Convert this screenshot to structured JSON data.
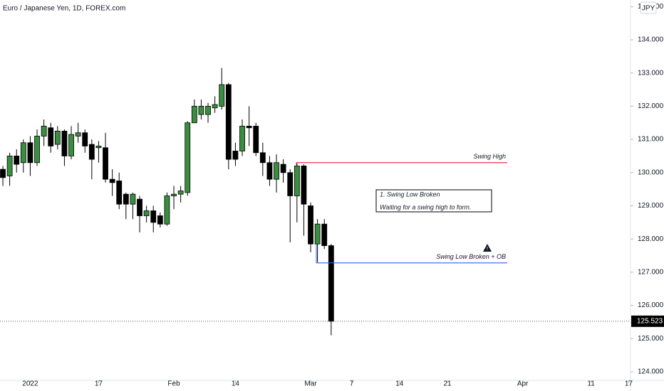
{
  "chart_data": {
    "type": "candlestick",
    "title": "Euro / Japanese Yen, 1D, FOREX.com",
    "currency": "JPY",
    "x": [
      0,
      1,
      2,
      3,
      4,
      5,
      6,
      7,
      8,
      9,
      10,
      11,
      12,
      13,
      14,
      15,
      16,
      17,
      18,
      19,
      20,
      21,
      22,
      23,
      24,
      25,
      26,
      27,
      28,
      29,
      30,
      31,
      32,
      33,
      34,
      35,
      36,
      37,
      38,
      39,
      40,
      41,
      42,
      43,
      44,
      45,
      46,
      47,
      48
    ],
    "open": [
      130.1,
      129.9,
      130.5,
      130.3,
      130.9,
      130.3,
      131.1,
      131.35,
      130.85,
      131.25,
      130.5,
      131.1,
      131.2,
      130.85,
      130.75,
      130.75,
      129.8,
      129.75,
      129.35,
      129.05,
      129.2,
      128.7,
      128.85,
      128.7,
      128.45,
      129.3,
      129.35,
      129.4,
      131.5,
      131.75,
      131.75,
      131.95,
      132.0,
      132.65,
      130.65,
      130.65,
      131.4,
      131.4,
      130.6,
      130.3,
      129.8,
      130.25,
      130.0,
      129.3,
      130.2,
      129.0,
      127.85,
      128.45,
      127.8
    ],
    "high": [
      130.2,
      130.6,
      130.7,
      131.0,
      131.1,
      131.3,
      131.6,
      131.5,
      131.4,
      131.3,
      131.4,
      131.5,
      131.3,
      131.0,
      130.95,
      131.2,
      130.1,
      130.0,
      129.4,
      129.4,
      129.3,
      129.0,
      129.0,
      128.8,
      129.4,
      129.6,
      129.6,
      131.55,
      132.2,
      132.2,
      132.1,
      132.3,
      133.15,
      132.7,
      130.9,
      131.6,
      132.0,
      131.5,
      130.9,
      130.5,
      130.55,
      130.4,
      130.1,
      130.3,
      130.25,
      129.1,
      128.6,
      128.6,
      127.85
    ],
    "low": [
      129.6,
      129.6,
      130.0,
      130.0,
      129.9,
      130.2,
      130.8,
      130.6,
      130.7,
      130.2,
      130.4,
      130.9,
      130.6,
      129.8,
      130.3,
      129.7,
      129.3,
      128.9,
      128.6,
      128.6,
      128.2,
      128.5,
      128.2,
      128.35,
      128.4,
      128.9,
      129.1,
      129.3,
      131.5,
      131.6,
      131.5,
      131.8,
      131.9,
      130.1,
      130.2,
      130.5,
      130.8,
      130.5,
      129.9,
      129.6,
      129.4,
      129.7,
      127.9,
      128.5,
      128.1,
      127.6,
      127.3,
      127.7,
      125.1
    ],
    "close": [
      129.85,
      130.5,
      130.25,
      130.9,
      130.3,
      131.1,
      131.4,
      130.8,
      131.25,
      130.5,
      131.15,
      131.2,
      130.8,
      130.4,
      130.8,
      129.8,
      129.7,
      129.05,
      129.05,
      129.35,
      128.7,
      128.85,
      128.5,
      128.45,
      129.3,
      129.35,
      129.45,
      131.5,
      132.0,
      132.0,
      132.0,
      132.05,
      132.65,
      130.4,
      130.4,
      131.4,
      131.35,
      130.6,
      130.3,
      129.8,
      130.3,
      130.0,
      129.3,
      130.2,
      129.05,
      127.85,
      128.45,
      127.8,
      125.523
    ],
    "up_color": "#3a8e3f",
    "down_color": "#000000",
    "last_price": 125.523,
    "ylim": [
      123.743,
      135.199
    ],
    "yticks": [
      {
        "value": 124,
        "label": "124.000"
      },
      {
        "value": 125,
        "label": "125.000"
      },
      {
        "value": 126,
        "label": "126.000"
      },
      {
        "value": 127,
        "label": "127.000"
      },
      {
        "value": 128,
        "label": "128.000"
      },
      {
        "value": 129,
        "label": "129.000"
      },
      {
        "value": 130,
        "label": "130.000"
      },
      {
        "value": 131,
        "label": "131.000"
      },
      {
        "value": 132,
        "label": "132.000"
      },
      {
        "value": 133,
        "label": "133.000"
      },
      {
        "value": 134,
        "label": "134.000"
      },
      {
        "value": 135,
        "label": "135.000"
      }
    ],
    "xlim": [
      -0.42,
      91.77
    ],
    "xticks": [
      {
        "value": 4,
        "label": "2022"
      },
      {
        "value": 14,
        "label": "17"
      },
      {
        "value": 25,
        "label": "Feb"
      },
      {
        "value": 34,
        "label": "14"
      },
      {
        "value": 45,
        "label": "Mar"
      },
      {
        "value": 51,
        "label": "7"
      },
      {
        "value": 58,
        "label": "14"
      },
      {
        "value": 65,
        "label": "21"
      },
      {
        "value": 76,
        "label": "Apr"
      },
      {
        "value": 86,
        "label": "11"
      },
      {
        "value": 91.5,
        "label": "17"
      }
    ],
    "levels": [
      {
        "name": "Swing High",
        "value": 130.3,
        "color": "#f23645"
      },
      {
        "name": "Swing Low Broken + OB",
        "value": 127.28,
        "color": "#2962ff"
      }
    ],
    "note": {
      "title": "1. Swing Low Broken",
      "text": "Waiting for a swing high to form."
    }
  }
}
